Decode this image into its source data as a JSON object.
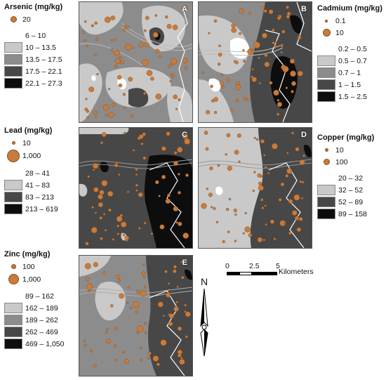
{
  "colors": {
    "class1": "#f5f5f5",
    "class2": "#c9c9c9",
    "class3": "#8c8c8c",
    "class4": "#474747",
    "class5": "#0d0d0d",
    "sample_dot": "#c97b3b"
  },
  "panels": [
    {
      "label": "A",
      "element": "Arsenic"
    },
    {
      "label": "B",
      "element": "Cadmium"
    },
    {
      "label": "C",
      "element": "Lead"
    },
    {
      "label": "D",
      "element": "Copper"
    },
    {
      "label": "E",
      "element": "Zinc"
    }
  ],
  "legends": {
    "arsenic": {
      "title": "Arsenic (mg/kg)",
      "points": [
        "20"
      ],
      "classes": [
        "6 – 10",
        "10 – 13.5",
        "13.5 – 17.5",
        "17.5 – 22.1",
        "22.1 – 27.3"
      ]
    },
    "cadmium": {
      "title": "Cadmium (mg/kg)",
      "points": [
        "0.1",
        "10"
      ],
      "classes": [
        "0.2 – 0.5",
        "0.5 – 0.7",
        "0.7 – 1",
        "1 – 1.5",
        "1.5 – 2.5"
      ]
    },
    "lead": {
      "title": "Lead (mg/kg)",
      "points": [
        "10",
        "1,000"
      ],
      "classes": [
        "28 – 41",
        "41 – 83",
        "83 – 213",
        "213 – 619"
      ]
    },
    "copper": {
      "title": "Copper (mg/kg)",
      "points": [
        "10",
        "100"
      ],
      "classes": [
        "20 – 32",
        "32 – 52",
        "52 – 89",
        "89 – 158"
      ]
    },
    "zinc": {
      "title": "Zinc (mg/kg)",
      "points": [
        "100",
        "1,000"
      ],
      "classes": [
        "89 – 162",
        "162 – 189",
        "189 – 262",
        "262 – 469",
        "469 – 1,050"
      ]
    }
  },
  "scale": {
    "ticks": [
      "0",
      "2.5",
      "5"
    ],
    "unit": "Kilometers"
  },
  "north_label": "N"
}
